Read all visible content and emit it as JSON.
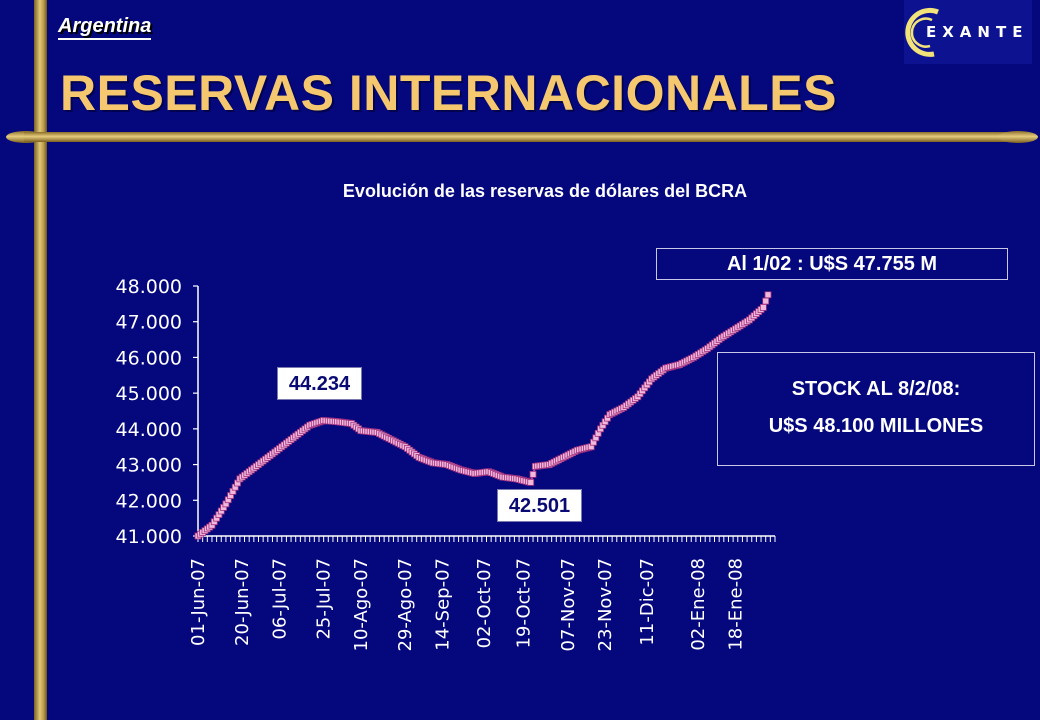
{
  "slide": {
    "region": "Argentina",
    "title": "RESERVAS INTERNACIONALES",
    "logo_letters": "EXANTE"
  },
  "callouts": {
    "latest": "Al 1/02 : U$S 47.755 M",
    "stock_line1": "STOCK AL 8/2/08:",
    "stock_line2": "U$S 48.100 MILLONES",
    "high": "44.234",
    "low": "42.501"
  },
  "colors": {
    "background": "#05087d",
    "gold": "#c9a94f",
    "title": "#f5c870",
    "series": "#f0b8dc",
    "axis": "#ffffff"
  },
  "chart_data": {
    "type": "line",
    "title": "Evolución de las reservas de dólares del BCRA",
    "xlabel": "",
    "ylabel": "",
    "ylim": [
      41000,
      48000
    ],
    "yticks": [
      "41.000",
      "42.000",
      "43.000",
      "44.000",
      "45.000",
      "46.000",
      "47.000",
      "48.000"
    ],
    "xticks": [
      "01-Jun-07",
      "20-Jun-07",
      "06-Jul-07",
      "25-Jul-07",
      "10-Ago-07",
      "29-Ago-07",
      "14-Sep-07",
      "02-Oct-07",
      "19-Oct-07",
      "07-Nov-07",
      "23-Nov-07",
      "11-Dic-07",
      "02-Ene-08",
      "18-Ene-08"
    ],
    "grid": false,
    "legend": "none",
    "series": [
      {
        "marker": "square",
        "anchors": [
          {
            "date": "01-Jun-07",
            "value": 41000
          },
          {
            "date": "07-Jun-07",
            "value": 41300
          },
          {
            "date": "13-Jun-07",
            "value": 41900
          },
          {
            "date": "19-Jun-07",
            "value": 42600
          },
          {
            "date": "25-Jun-07",
            "value": 42900
          },
          {
            "date": "01-Jul-07",
            "value": 43200
          },
          {
            "date": "07-Jul-07",
            "value": 43500
          },
          {
            "date": "13-Jul-07",
            "value": 43800
          },
          {
            "date": "19-Jul-07",
            "value": 44100
          },
          {
            "date": "25-Jul-07",
            "value": 44234
          },
          {
            "date": "31-Jul-07",
            "value": 44200
          },
          {
            "date": "06-Ago-07",
            "value": 44150
          },
          {
            "date": "10-Ago-07",
            "value": 43950
          },
          {
            "date": "17-Ago-07",
            "value": 43900
          },
          {
            "date": "23-Ago-07",
            "value": 43700
          },
          {
            "date": "29-Ago-07",
            "value": 43500
          },
          {
            "date": "04-Sep-07",
            "value": 43200
          },
          {
            "date": "10-Sep-07",
            "value": 43050
          },
          {
            "date": "16-Sep-07",
            "value": 43000
          },
          {
            "date": "22-Sep-07",
            "value": 42850
          },
          {
            "date": "28-Sep-07",
            "value": 42750
          },
          {
            "date": "04-Oct-07",
            "value": 42800
          },
          {
            "date": "10-Oct-07",
            "value": 42650
          },
          {
            "date": "16-Oct-07",
            "value": 42600
          },
          {
            "date": "22-Oct-07",
            "value": 42501
          },
          {
            "date": "24-Oct-07",
            "value": 42950
          },
          {
            "date": "30-Oct-07",
            "value": 43000
          },
          {
            "date": "05-Nov-07",
            "value": 43200
          },
          {
            "date": "11-Nov-07",
            "value": 43400
          },
          {
            "date": "17-Nov-07",
            "value": 43500
          },
          {
            "date": "21-Nov-07",
            "value": 44000
          },
          {
            "date": "25-Nov-07",
            "value": 44400
          },
          {
            "date": "01-Dic-07",
            "value": 44600
          },
          {
            "date": "07-Dic-07",
            "value": 44900
          },
          {
            "date": "13-Dic-07",
            "value": 45400
          },
          {
            "date": "19-Dic-07",
            "value": 45700
          },
          {
            "date": "25-Dic-07",
            "value": 45800
          },
          {
            "date": "31-Dic-07",
            "value": 46000
          },
          {
            "date": "06-Ene-08",
            "value": 46250
          },
          {
            "date": "12-Ene-08",
            "value": 46550
          },
          {
            "date": "18-Ene-08",
            "value": 46800
          },
          {
            "date": "24-Ene-08",
            "value": 47050
          },
          {
            "date": "30-Ene-08",
            "value": 47400
          },
          {
            "date": "01-Feb-08",
            "value": 47755
          }
        ]
      }
    ]
  }
}
